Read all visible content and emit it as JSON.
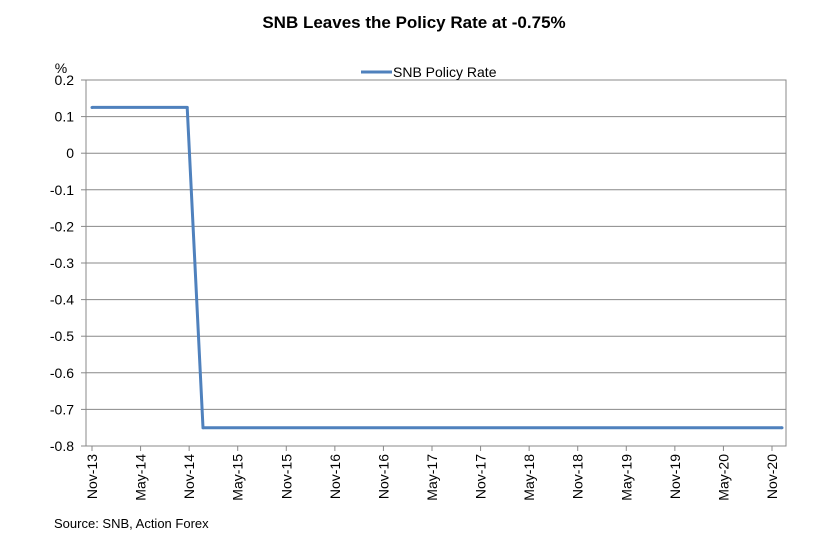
{
  "chart_data": {
    "type": "line",
    "title": "SNB Leaves the Policy Rate at -0.75%",
    "ylabel": "%",
    "xlabel": "",
    "ylim": [
      -0.8,
      0.2
    ],
    "yticks": [
      "0.2",
      "0.1",
      "0",
      "-0.1",
      "-0.2",
      "-0.3",
      "-0.4",
      "-0.5",
      "-0.6",
      "-0.7",
      "-0.8"
    ],
    "x_tick_labels": [
      "Nov-13",
      "May-14",
      "Nov-14",
      "May-15",
      "Nov-15",
      "Nov-16",
      "Nov-16",
      "May-17",
      "Nov-17",
      "May-18",
      "Nov-18",
      "May-19",
      "Nov-19",
      "May-20",
      "Nov-20"
    ],
    "grid": "horizontal",
    "legend_position": "top-center",
    "series": [
      {
        "name": "SNB Policy Rate",
        "color": "#4f81bd",
        "x": [
          "2013-11",
          "2014-11",
          "2015-01",
          "2021-02"
        ],
        "values": [
          0.125,
          0.125,
          -0.75,
          -0.75
        ]
      }
    ],
    "source": "Source: SNB, Action Forex"
  }
}
